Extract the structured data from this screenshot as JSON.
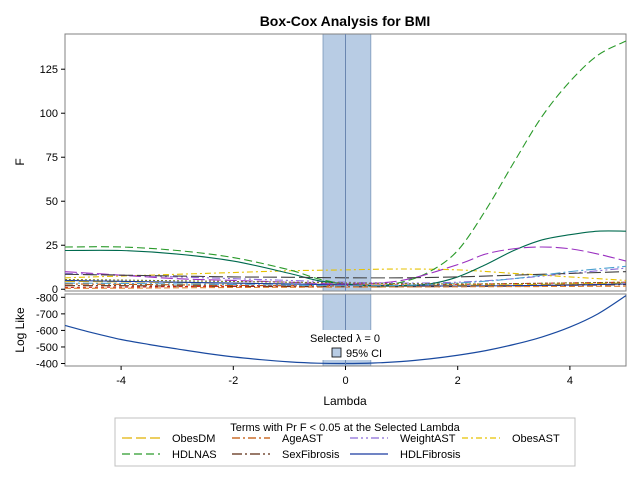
{
  "colors": {
    "ci_band": "#b8cce4",
    "ci_band_edge": "#8aa4c4",
    "grid_frame": "#808080"
  },
  "chart_data": {
    "type": "line",
    "title": "Box-Cox Analysis for BMI",
    "xlabel": "Lambda",
    "xlim": [
      -5,
      5
    ],
    "x_ticks": [
      -4,
      -2,
      0,
      2,
      4
    ],
    "selected_lambda": 0,
    "selected_label": "Selected λ = 0",
    "ci_label": "95% CI",
    "ci": [
      -0.4,
      0.45
    ],
    "f_panel": {
      "ylabel": "F",
      "ylim": [
        -1,
        145
      ],
      "y_ticks": [
        0,
        25,
        50,
        75,
        100,
        125
      ],
      "series": [
        {
          "name": "ObesDM",
          "color": "#e1b000",
          "dash": "10,4",
          "x": [
            -5,
            -4,
            -3,
            -2,
            -1,
            0,
            1,
            2,
            3,
            4,
            5
          ],
          "y": [
            4.5,
            4.2,
            3.8,
            3.4,
            3,
            2.6,
            2.4,
            2.3,
            2.5,
            3,
            3.6
          ]
        },
        {
          "name": "AgeAST",
          "color": "#c05000",
          "dash": "8,3,2,3",
          "x": [
            -5,
            -4,
            -3,
            -2,
            -1,
            0,
            1,
            2,
            3,
            4,
            5
          ],
          "y": [
            3,
            2.8,
            2.5,
            2.2,
            2,
            1.8,
            1.7,
            1.8,
            2,
            2.5,
            3
          ]
        },
        {
          "name": "WeightAST",
          "color": "#8a6ad8",
          "dash": "8,3,2,3,2,3",
          "x": [
            -5,
            -4,
            -3,
            -2,
            -1,
            0,
            1,
            2,
            3,
            4,
            5
          ],
          "y": [
            9,
            8,
            7,
            6,
            5,
            4,
            3.5,
            4,
            6,
            9,
            12
          ]
        },
        {
          "name": "ObesAST",
          "color": "#e6c200",
          "dash": "6,3,2,3",
          "x": [
            -5,
            -4,
            -3,
            -2,
            -1,
            0,
            1,
            2,
            3,
            4,
            5
          ],
          "y": [
            6.5,
            7.5,
            8.5,
            9.5,
            10.5,
            11,
            11.5,
            11,
            9,
            7,
            5
          ]
        },
        {
          "name": "HDLNAS",
          "color": "#2a9a2a",
          "dash": "8,4",
          "x": [
            -5,
            -4,
            -3,
            -2,
            -1,
            -0.5,
            0,
            0.5,
            1,
            1.5,
            2,
            2.5,
            3,
            3.5,
            4,
            4.5,
            5
          ],
          "y": [
            24,
            24,
            22,
            18,
            11,
            6,
            3,
            2,
            4,
            10,
            22,
            45,
            72,
            98,
            118,
            133,
            141
          ]
        },
        {
          "name": "SexFibrosis",
          "color": "#5c2a10",
          "dash": "10,3,2,3",
          "x": [
            -5,
            -4,
            -3,
            -2,
            -1,
            0,
            1,
            2,
            3,
            4,
            5
          ],
          "y": [
            2,
            2,
            1.8,
            1.6,
            1.5,
            1.4,
            1.4,
            1.5,
            1.8,
            2.2,
            2.6
          ]
        },
        {
          "name": "HDLFibrosis",
          "color": "#1a3aa0",
          "dash": "",
          "x": [
            -5,
            -4,
            -3,
            -2,
            -1,
            0,
            1,
            2,
            3,
            4,
            5
          ],
          "y": [
            5,
            4.5,
            4,
            3.5,
            3,
            2.5,
            2,
            1.8,
            2,
            2.4,
            3
          ]
        },
        {
          "name": "",
          "color": "#006a4e",
          "dash": "",
          "x": [
            -5,
            -4,
            -3,
            -2,
            -1,
            -0.5,
            0,
            0.5,
            1,
            1.5,
            2,
            2.5,
            3,
            3.5,
            4,
            4.5,
            5
          ],
          "y": [
            22,
            22,
            20,
            16,
            9,
            5,
            3,
            2,
            2,
            3,
            7,
            14,
            22,
            28,
            31,
            33,
            33
          ]
        },
        {
          "name": "",
          "color": "#9a30c0",
          "dash": "12,4",
          "x": [
            -5,
            -4,
            -3,
            -2,
            -1,
            0,
            1,
            2,
            2.5,
            3,
            3.5,
            4,
            4.5,
            5
          ],
          "y": [
            10,
            8,
            6,
            5,
            4,
            3,
            5,
            14,
            20,
            23,
            24,
            23,
            20,
            16
          ]
        },
        {
          "name": "",
          "color": "#404040",
          "dash": "14,4",
          "x": [
            -5,
            -4,
            -3,
            -2,
            -1,
            0,
            1,
            2,
            3,
            4,
            5
          ],
          "y": [
            8.5,
            8,
            7.5,
            7,
            6.8,
            6.5,
            6.5,
            7,
            8,
            9,
            10
          ]
        },
        {
          "name": "",
          "color": "#d02020",
          "dash": "3,3",
          "x": [
            -5,
            -4,
            -3,
            -2,
            -1,
            0,
            1,
            2,
            3,
            4,
            5
          ],
          "y": [
            1,
            1.2,
            1.5,
            1.8,
            2,
            2.2,
            2.5,
            2.8,
            3.2,
            3.6,
            4
          ]
        },
        {
          "name": "",
          "color": "#4aa0d0",
          "dash": "10,3,2,3",
          "x": [
            -5,
            -4,
            -3,
            -2,
            -1,
            0,
            1,
            2,
            3,
            4,
            5
          ],
          "y": [
            3.5,
            3.3,
            3,
            2.7,
            2.3,
            2,
            2.2,
            3.5,
            6,
            10,
            13
          ]
        },
        {
          "name": "",
          "color": "#e08030",
          "dash": "6,3",
          "x": [
            -5,
            -4,
            -3,
            -2,
            -1,
            0,
            1,
            2,
            3,
            4,
            5
          ],
          "y": [
            0.5,
            0.6,
            0.8,
            1,
            1.1,
            1.2,
            1.3,
            1.4,
            1.5,
            1.6,
            1.7
          ]
        },
        {
          "name": "",
          "color": "#7a7a20",
          "dash": "2,2",
          "x": [
            -5,
            -4,
            -3,
            -2,
            -1,
            0,
            1,
            2,
            3,
            4,
            5
          ],
          "y": [
            5.5,
            5.2,
            4.8,
            4.4,
            4,
            3.6,
            3.2,
            3,
            3.2,
            3.6,
            4
          ]
        }
      ]
    },
    "ll_panel": {
      "ylabel": "Log Like",
      "ylim": [
        -820,
        -385
      ],
      "y_ticks": [
        -400,
        -500,
        -600,
        -700,
        -800
      ],
      "series": [
        {
          "name": "Log Like",
          "color": "#1a4aa0",
          "x": [
            -5,
            -4.5,
            -4,
            -3.5,
            -3,
            -2.5,
            -2,
            -1.5,
            -1,
            -0.5,
            0,
            0.5,
            1,
            1.5,
            2,
            2.5,
            3,
            3.5,
            4,
            4.5,
            5
          ],
          "y": [
            -630,
            -585,
            -545,
            -515,
            -488,
            -462,
            -440,
            -423,
            -410,
            -402,
            -400,
            -403,
            -412,
            -428,
            -450,
            -478,
            -515,
            -560,
            -620,
            -700,
            -810
          ]
        }
      ]
    },
    "legend": {
      "title": "Terms with Pr F < 0.05 at the Selected Lambda",
      "placement": "bottom",
      "entries": [
        "ObesDM",
        "AgeAST",
        "WeightAST",
        "ObesAST",
        "HDLNAS",
        "SexFibrosis",
        "HDLFibrosis"
      ]
    }
  }
}
